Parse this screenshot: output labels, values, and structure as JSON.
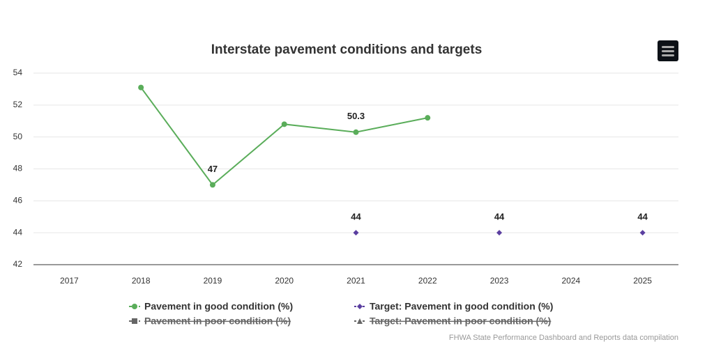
{
  "chart_data": {
    "type": "line",
    "title": "Interstate pavement conditions and targets",
    "credits": "FHWA State Performance Dashboard and Reports data compilation",
    "categories": [
      "2017",
      "2018",
      "2019",
      "2020",
      "2021",
      "2022",
      "2023",
      "2024",
      "2025"
    ],
    "ylim": [
      42,
      54
    ],
    "yticks": [
      42,
      44,
      46,
      48,
      50,
      52,
      54
    ],
    "grid": true,
    "legend": "bottom",
    "series": [
      {
        "name": "Pavement in good condition (%)",
        "color": "#5aad5a",
        "marker": "circle",
        "line": true,
        "visible": true,
        "values": [
          null,
          53.1,
          47,
          50.8,
          50.3,
          51.2,
          null,
          null,
          null
        ],
        "value_labels": [
          null,
          null,
          "47",
          null,
          "50.3",
          null,
          null,
          null,
          null
        ]
      },
      {
        "name": "Target: Pavement in good condition (%)",
        "color": "#5b3fa0",
        "marker": "diamond",
        "line": false,
        "visible": true,
        "values": [
          null,
          null,
          null,
          null,
          44,
          null,
          44,
          null,
          44
        ],
        "value_labels": [
          null,
          null,
          null,
          null,
          "44",
          null,
          "44",
          null,
          "44"
        ]
      },
      {
        "name": "Pavement in poor condition (%)",
        "color": "#666666",
        "marker": "square",
        "line": true,
        "visible": false
      },
      {
        "name": "Target: Pavement in poor condition (%)",
        "color": "#666666",
        "marker": "triangle",
        "line": false,
        "visible": false
      }
    ]
  }
}
